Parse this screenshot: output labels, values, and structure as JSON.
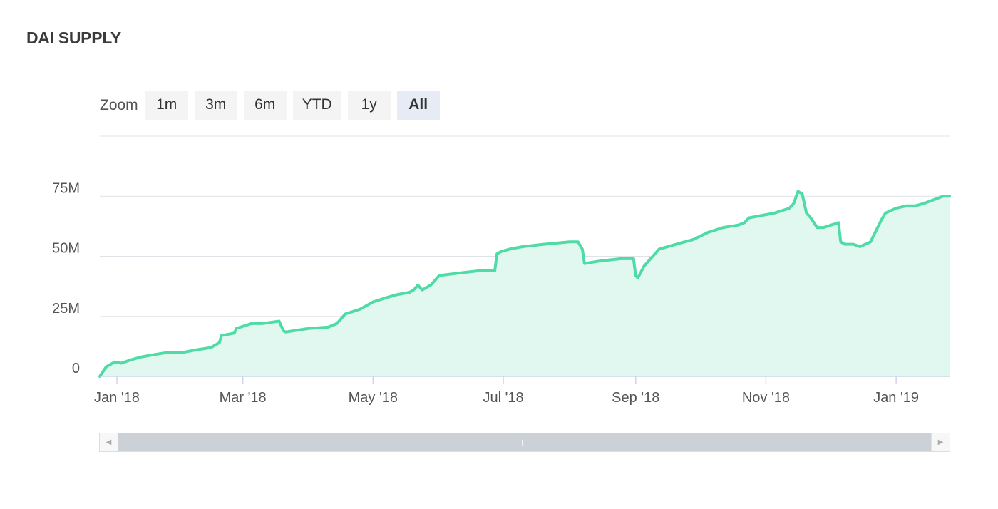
{
  "title": "DAI SUPPLY",
  "zoom": {
    "label": "Zoom",
    "buttons": [
      "1m",
      "3m",
      "6m",
      "YTD",
      "1y",
      "All"
    ],
    "active": "All"
  },
  "colors": {
    "line": "#4fdba6",
    "fill": "#e0f8f0",
    "grid": "#dfe3e8",
    "axis": "#ccd6eb"
  },
  "chart_data": {
    "type": "area",
    "title": "DAI SUPPLY",
    "xlabel": "",
    "ylabel": "",
    "ylim": [
      0,
      100000000
    ],
    "xlim": [
      "2017-12-24",
      "2019-01-26"
    ],
    "y_ticks": [
      0,
      25000000,
      50000000,
      75000000
    ],
    "y_tick_labels": [
      "0",
      "25M",
      "50M",
      "75M"
    ],
    "x_ticks": [
      "2018-01-01",
      "2018-03-01",
      "2018-05-01",
      "2018-07-01",
      "2018-09-01",
      "2018-11-01",
      "2019-01-01"
    ],
    "x_tick_labels": [
      "Jan '18",
      "Mar '18",
      "May '18",
      "Jul '18",
      "Sep '18",
      "Nov '18",
      "Jan '19"
    ],
    "grid": true,
    "legend": "none",
    "series": [
      {
        "x": [
          "2017-12-24",
          "2017-12-27",
          "2017-12-31",
          "2018-01-03",
          "2018-01-08",
          "2018-01-12",
          "2018-01-18",
          "2018-01-25",
          "2018-02-01",
          "2018-02-07",
          "2018-02-14",
          "2018-02-18",
          "2018-02-19",
          "2018-02-25",
          "2018-02-26",
          "2018-03-05",
          "2018-03-10",
          "2018-03-18",
          "2018-03-20",
          "2018-03-21",
          "2018-04-01",
          "2018-04-10",
          "2018-04-14",
          "2018-04-18",
          "2018-04-25",
          "2018-05-01",
          "2018-05-08",
          "2018-05-12",
          "2018-05-18",
          "2018-05-20",
          "2018-05-22",
          "2018-05-24",
          "2018-05-28",
          "2018-06-01",
          "2018-06-10",
          "2018-06-20",
          "2018-06-27",
          "2018-06-28",
          "2018-06-30",
          "2018-07-04",
          "2018-07-10",
          "2018-07-20",
          "2018-08-01",
          "2018-08-05",
          "2018-08-07",
          "2018-08-08",
          "2018-08-15",
          "2018-08-25",
          "2018-08-31",
          "2018-09-01",
          "2018-09-02",
          "2018-09-05",
          "2018-09-07",
          "2018-09-12",
          "2018-09-20",
          "2018-09-28",
          "2018-10-05",
          "2018-10-12",
          "2018-10-19",
          "2018-10-22",
          "2018-10-24",
          "2018-11-05",
          "2018-11-12",
          "2018-11-14",
          "2018-11-16",
          "2018-11-18",
          "2018-11-20",
          "2018-11-22",
          "2018-11-25",
          "2018-11-28",
          "2018-12-05",
          "2018-12-06",
          "2018-12-08",
          "2018-12-12",
          "2018-12-15",
          "2018-12-20",
          "2018-12-25",
          "2018-12-27",
          "2019-01-01",
          "2019-01-06",
          "2019-01-10",
          "2019-01-14",
          "2019-01-20",
          "2019-01-23",
          "2019-01-26"
        ],
        "y": [
          0,
          4000000,
          6000000,
          5500000,
          7000000,
          8000000,
          9000000,
          10000000,
          10000000,
          11000000,
          12000000,
          14000000,
          17000000,
          18000000,
          20000000,
          22000000,
          22000000,
          23000000,
          19000000,
          18500000,
          20000000,
          20500000,
          22000000,
          26000000,
          28000000,
          31000000,
          33000000,
          34000000,
          35000000,
          36000000,
          38000000,
          36000000,
          38000000,
          42000000,
          43000000,
          44000000,
          44000000,
          51000000,
          52000000,
          53000000,
          54000000,
          55000000,
          56000000,
          56000000,
          53000000,
          47000000,
          48000000,
          49000000,
          49000000,
          42000000,
          41000000,
          46000000,
          48000000,
          53000000,
          55000000,
          57000000,
          60000000,
          62000000,
          63000000,
          64000000,
          66000000,
          68000000,
          70000000,
          72000000,
          77000000,
          76000000,
          68000000,
          66000000,
          62000000,
          62000000,
          64000000,
          56000000,
          55000000,
          55000000,
          54000000,
          56000000,
          65000000,
          68000000,
          70000000,
          71000000,
          71000000,
          72000000,
          74000000,
          75000000,
          75000000
        ]
      }
    ]
  }
}
